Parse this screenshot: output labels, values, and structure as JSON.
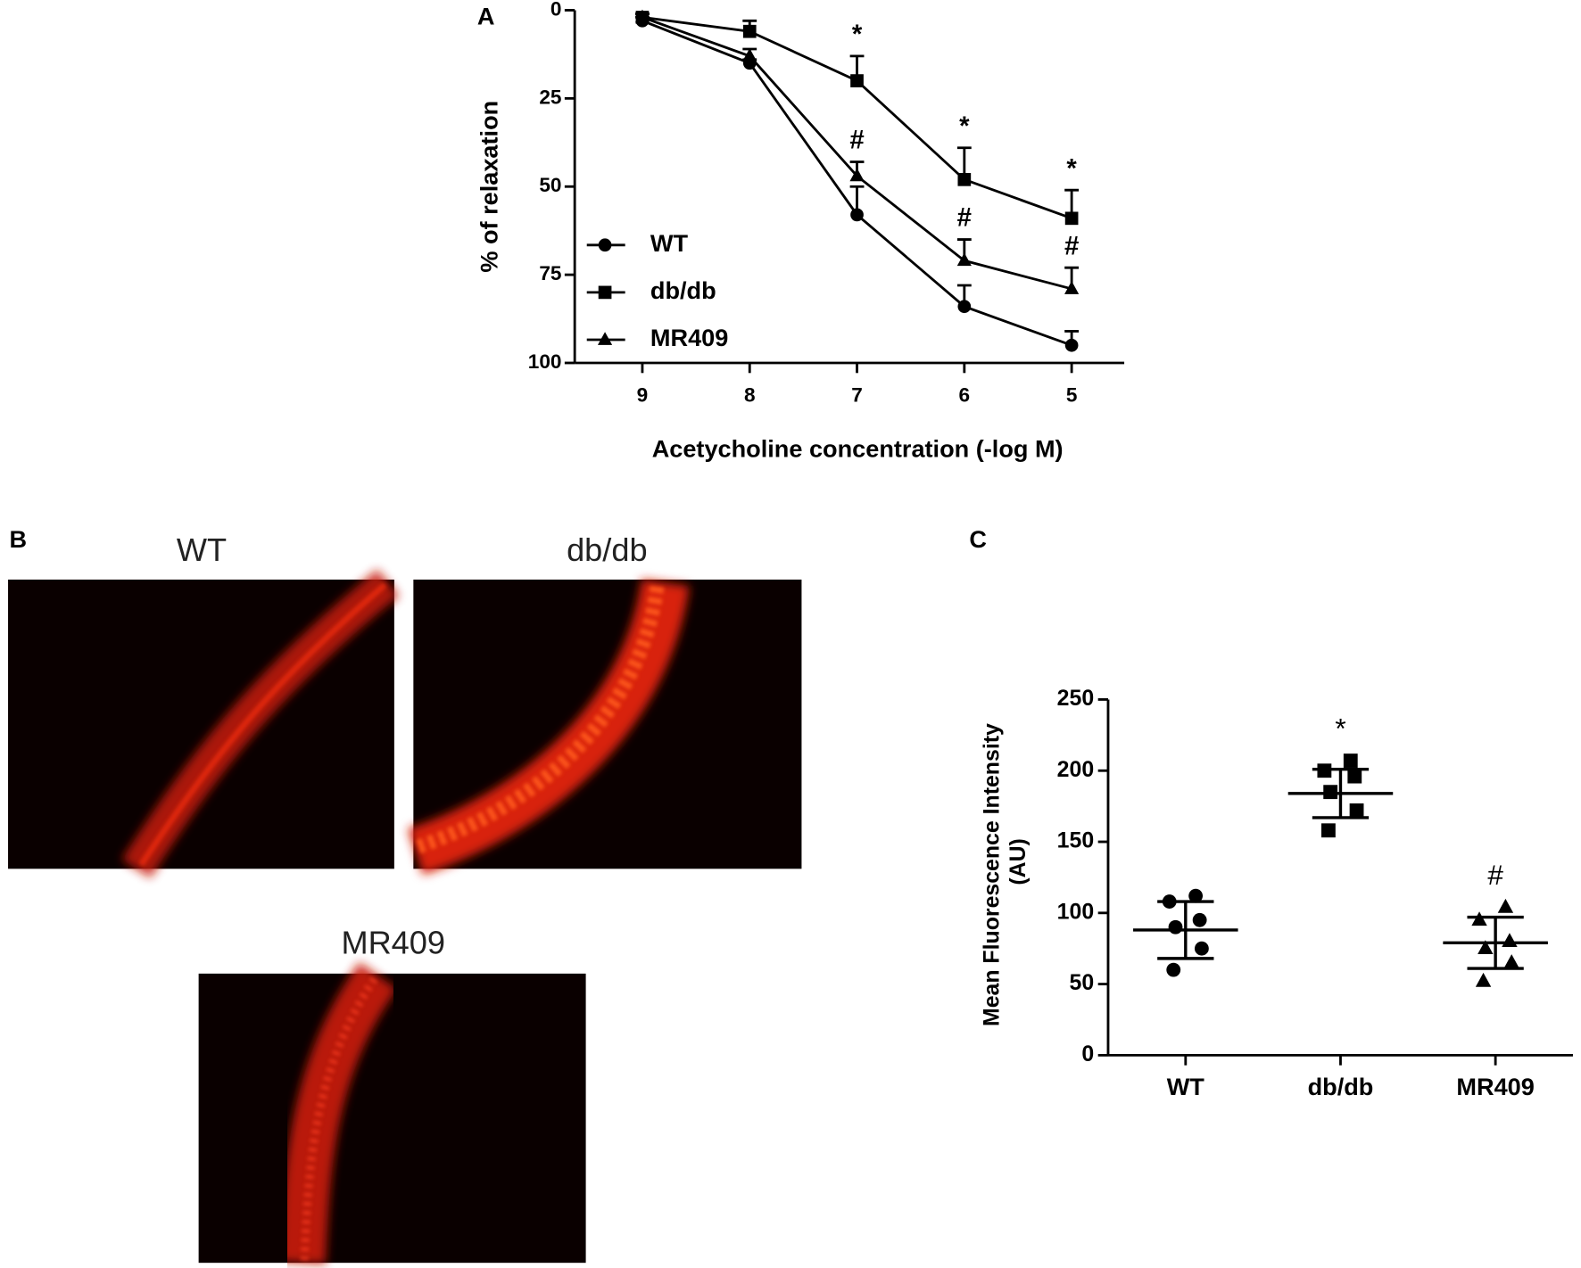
{
  "chart_data": [
    {
      "type": "line",
      "panel": "A",
      "ylabel": "% of relaxation",
      "xlabel": "Acetycholine concentration (-log M)",
      "x": [
        9,
        8,
        7,
        6,
        5
      ],
      "xlim": [
        9.63,
        4.51
      ],
      "xticks": [
        9,
        8,
        7,
        6,
        5
      ],
      "ylim": [
        0,
        100
      ],
      "yticks": [
        0,
        25,
        50,
        75,
        100
      ],
      "yreversed": true,
      "series": [
        {
          "name": "WT",
          "color": "#000000",
          "marker": "circle",
          "values": [
            3,
            15,
            58,
            84,
            95
          ],
          "errors": [
            1,
            1,
            8,
            6,
            4
          ],
          "significance": [
            null,
            null,
            null,
            null,
            null
          ]
        },
        {
          "name": "db/db",
          "color": "#000000",
          "marker": "square",
          "values": [
            2,
            6,
            20,
            48,
            59
          ],
          "errors": [
            1,
            3,
            7,
            9,
            8
          ],
          "significance": [
            null,
            null,
            "*",
            "*",
            "*"
          ]
        },
        {
          "name": "MR409",
          "color": "#000000",
          "marker": "triangle",
          "values": [
            2,
            13,
            47,
            71,
            79
          ],
          "errors": [
            1,
            2,
            4,
            6,
            6
          ],
          "significance": [
            null,
            null,
            "#",
            "#",
            "#"
          ]
        }
      ]
    },
    {
      "type": "dotplot",
      "panel": "C",
      "ylabel": [
        "Mean  Fluorescence Intensity",
        "(AU)"
      ],
      "categories": [
        "WT",
        "db/db",
        "MR409"
      ],
      "markers": [
        "circle",
        "square",
        "triangle"
      ],
      "points": [
        [
          112,
          108,
          95,
          90,
          75,
          60
        ],
        [
          207,
          200,
          196,
          185,
          172,
          158
        ],
        [
          104,
          95,
          80,
          75,
          65,
          52
        ]
      ],
      "mean": [
        88,
        184,
        79
      ],
      "sd": [
        20,
        17,
        18
      ],
      "significance": [
        null,
        "*",
        "#"
      ],
      "color": "#000000",
      "ylim": [
        0,
        250
      ],
      "yticks": [
        0,
        50,
        100,
        150,
        200,
        250
      ]
    }
  ],
  "panel_b": {
    "label": "B",
    "images": [
      {
        "title": "WT"
      },
      {
        "title": "db/db"
      },
      {
        "title": "MR409"
      }
    ]
  }
}
